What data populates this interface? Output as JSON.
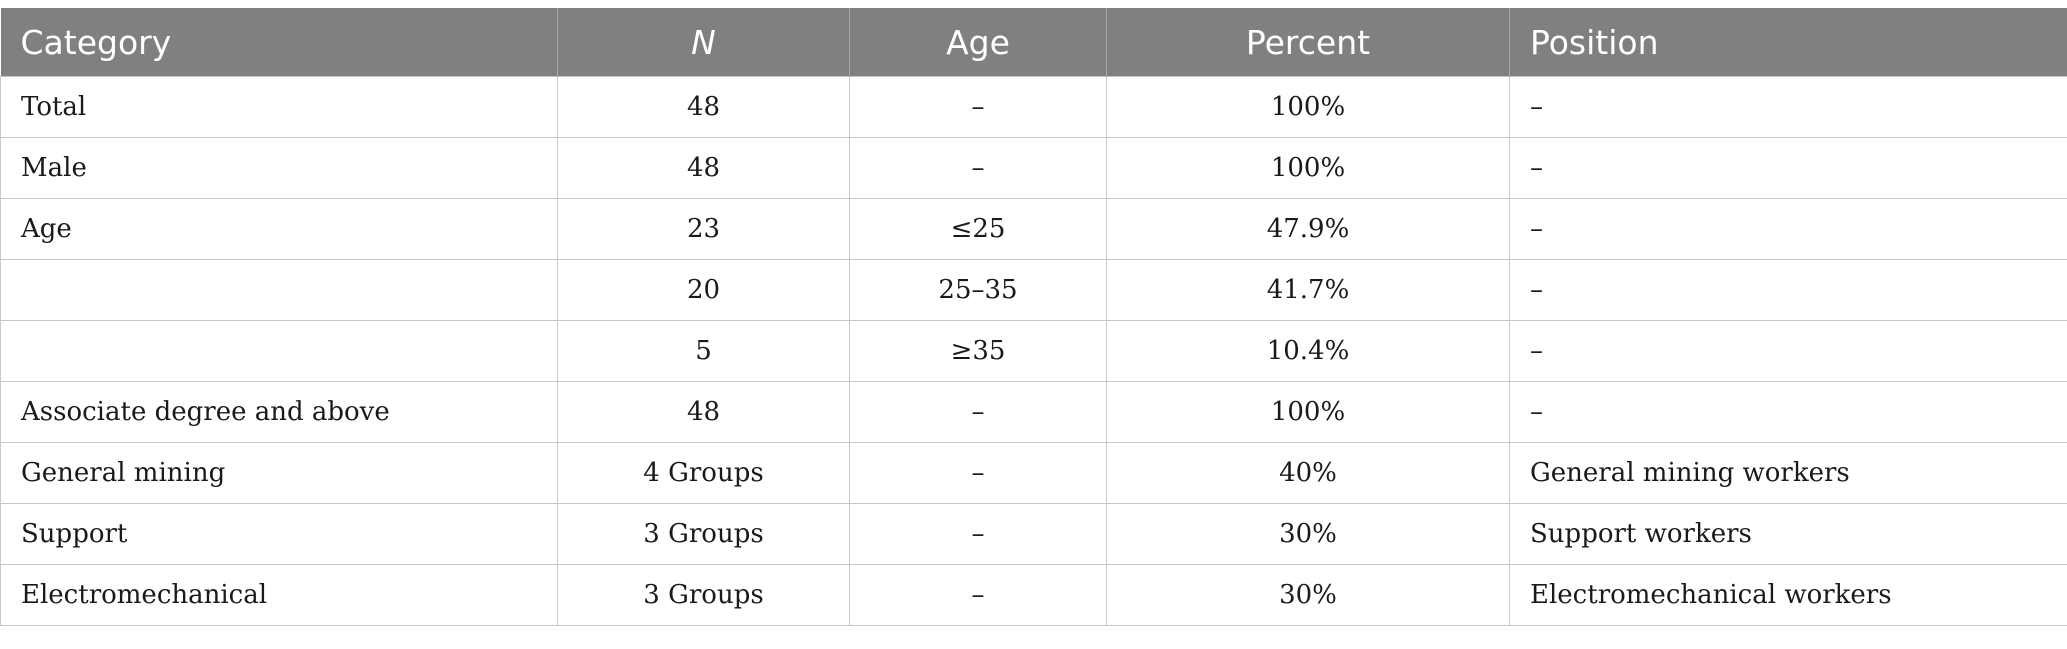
{
  "table": {
    "headers": [
      "Category",
      "N",
      "Age",
      "Percent",
      "Position"
    ],
    "rows": [
      [
        "Total",
        "48",
        "–",
        "100%",
        "–"
      ],
      [
        "Male",
        "48",
        "–",
        "100%",
        "–"
      ],
      [
        "Age",
        "23",
        "≤25",
        "47.9%",
        "–"
      ],
      [
        "",
        "20",
        "25–35",
        "41.7%",
        "–"
      ],
      [
        "",
        "5",
        "≥35",
        "10.4%",
        "–"
      ],
      [
        "Associate degree and above",
        "48",
        "–",
        "100%",
        "–"
      ],
      [
        "General mining",
        "4 Groups",
        "–",
        "40%",
        "General mining workers"
      ],
      [
        "Support",
        "3 Groups",
        "–",
        "30%",
        "Support workers"
      ],
      [
        "Electromechanical",
        "3 Groups",
        "–",
        "30%",
        "Electromechanical workers"
      ]
    ]
  },
  "colors": {
    "header_bg": "#808080",
    "header_text": "#ffffff",
    "grid": "#c8c8c8"
  }
}
